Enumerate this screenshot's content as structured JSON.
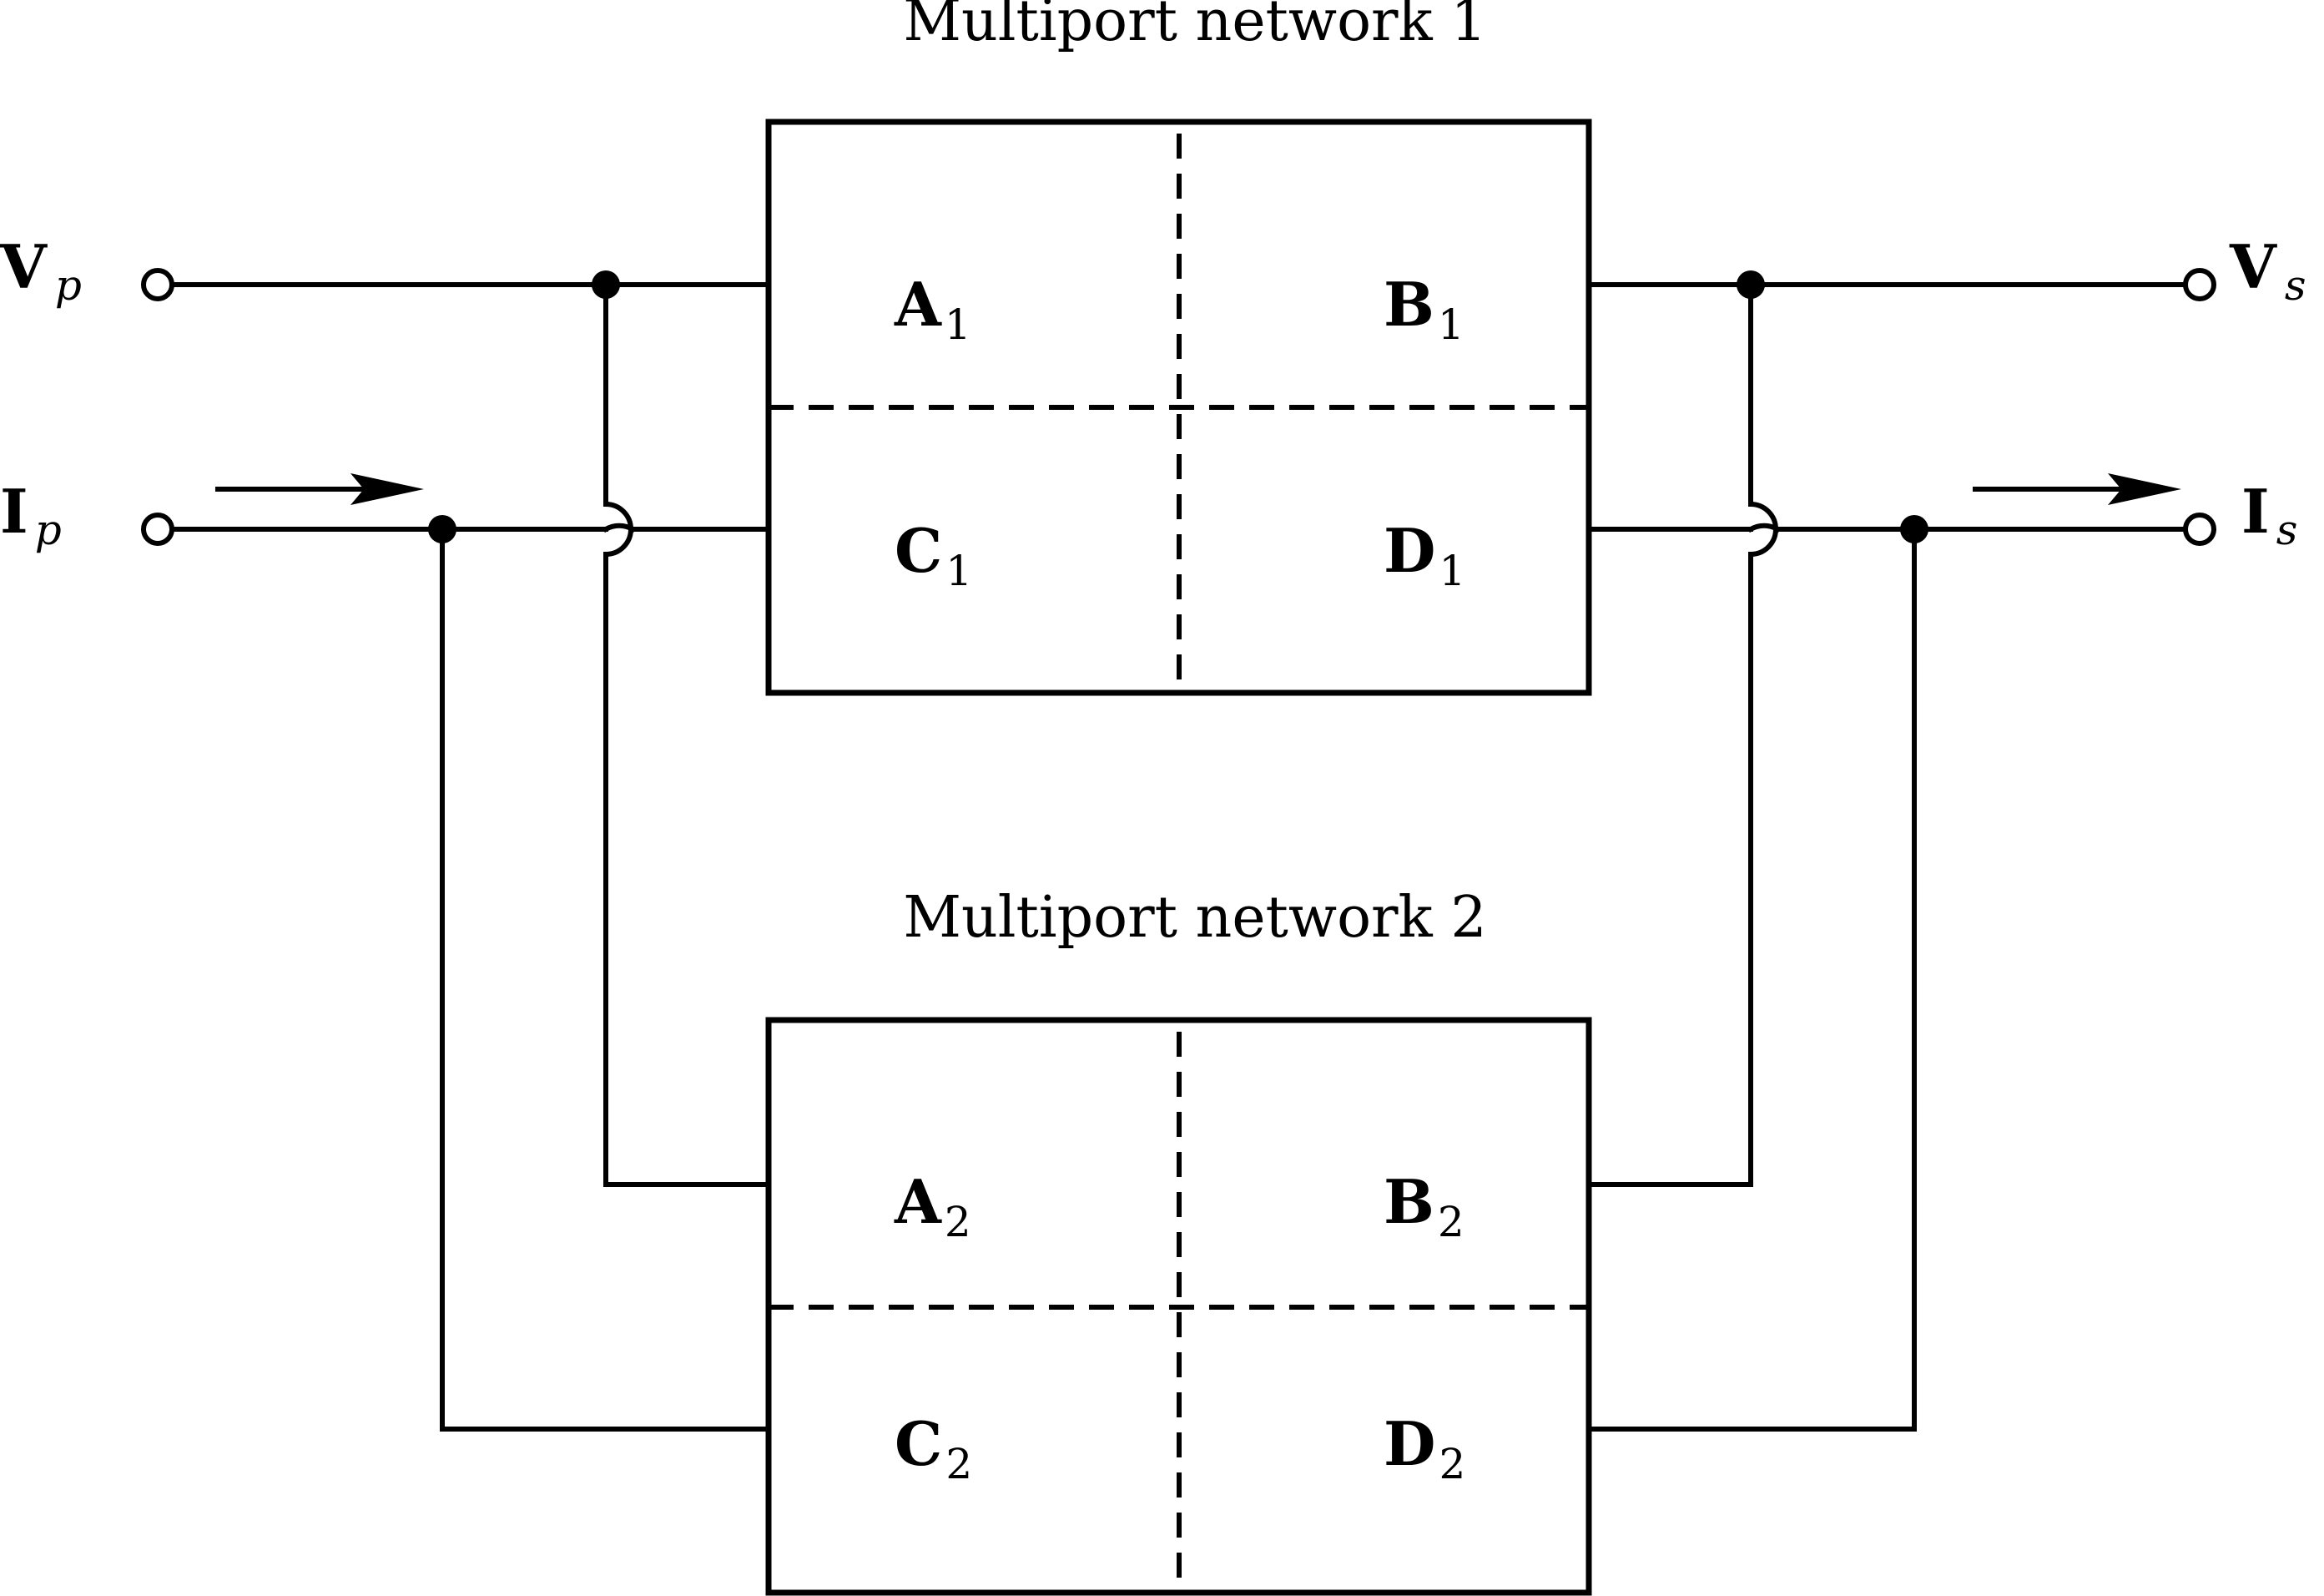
{
  "networks": [
    {
      "title": "Multiport network 1",
      "blocks": {
        "a": {
          "letter": "A",
          "sub": "1"
        },
        "b": {
          "letter": "B",
          "sub": "1"
        },
        "c": {
          "letter": "C",
          "sub": "1"
        },
        "d": {
          "letter": "D",
          "sub": "1"
        }
      }
    },
    {
      "title": "Multiport network 2",
      "blocks": {
        "a": {
          "letter": "A",
          "sub": "2"
        },
        "b": {
          "letter": "B",
          "sub": "2"
        },
        "c": {
          "letter": "C",
          "sub": "2"
        },
        "d": {
          "letter": "D",
          "sub": "2"
        }
      }
    }
  ],
  "ports": {
    "vp": {
      "symbol": "V",
      "sub": "p"
    },
    "ip": {
      "symbol": "I",
      "sub": "p"
    },
    "vs": {
      "symbol": "V",
      "sub": "s"
    },
    "is": {
      "symbol": "I",
      "sub": "s"
    }
  }
}
